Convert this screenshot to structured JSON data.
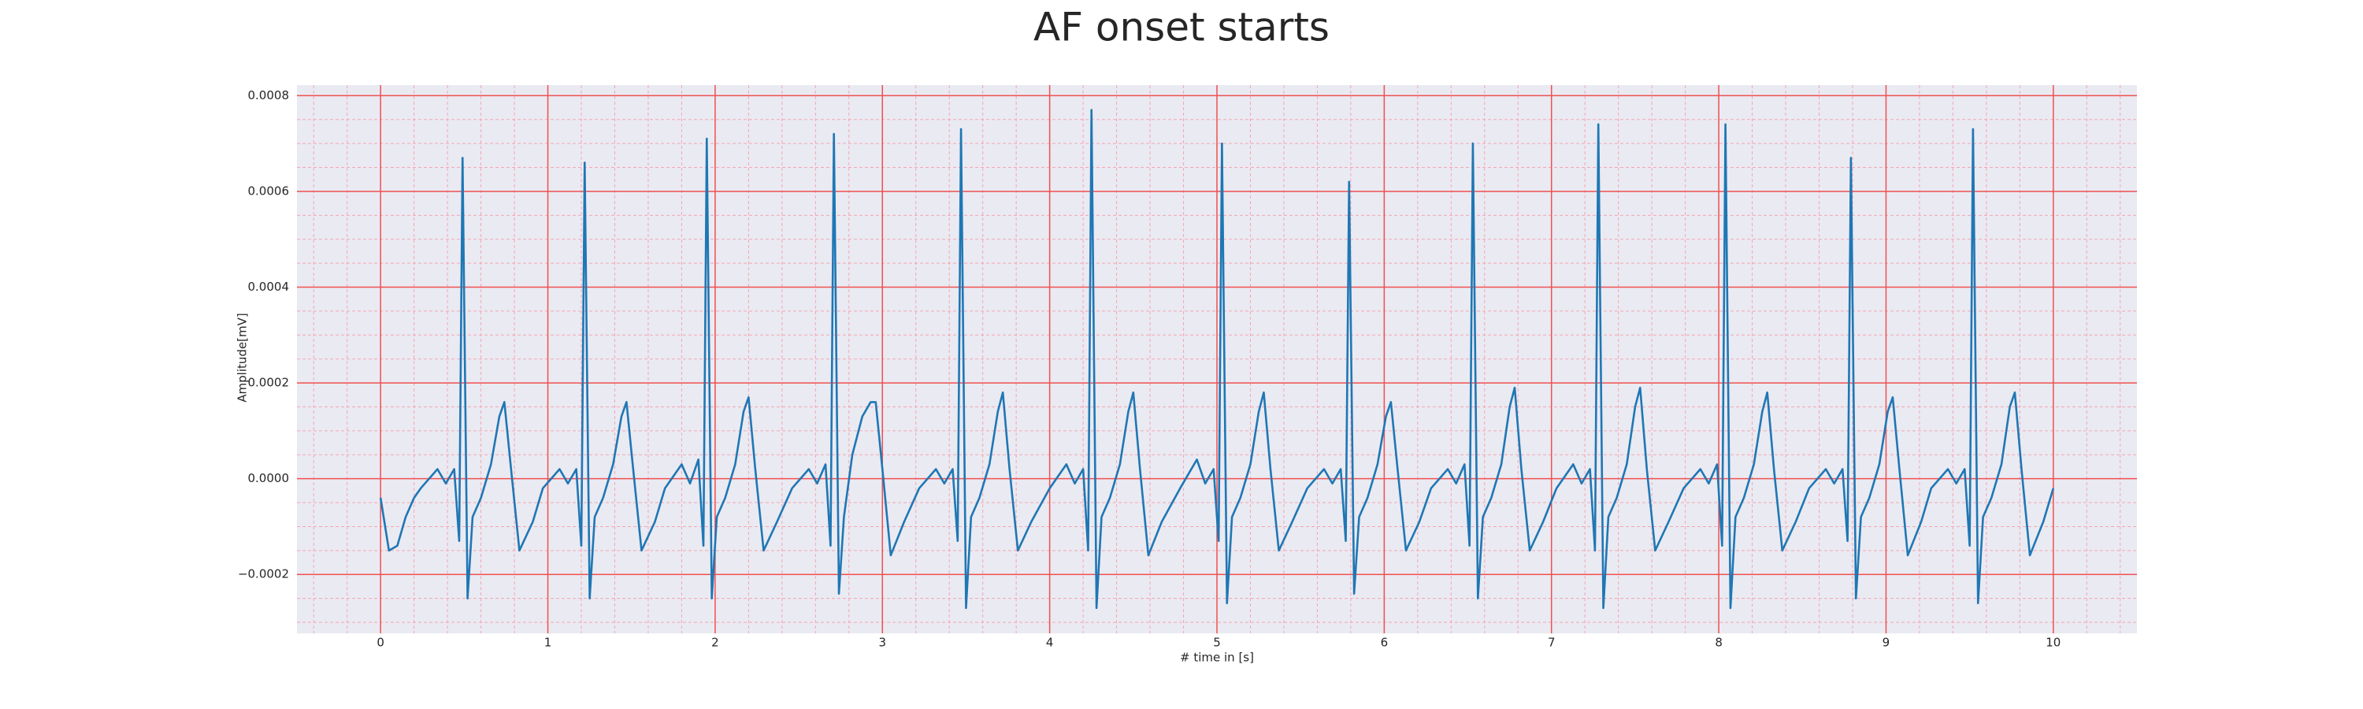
{
  "chart_data": {
    "type": "line",
    "title": "AF onset starts",
    "xlabel": "# time in [s]",
    "ylabel": "Amplitude[mV]",
    "color": "#1f77b4",
    "grid": true,
    "minor_grid": true,
    "xlim": [
      -0.5,
      10.5
    ],
    "ylim": [
      -0.000323,
      0.000822
    ],
    "xticks": [
      0,
      1,
      2,
      3,
      4,
      5,
      6,
      7,
      8,
      9,
      10
    ],
    "yticks": [
      {
        "value": -0.0002,
        "label": "−0.0002"
      },
      {
        "value": 0,
        "label": "0.0000"
      },
      0.0002,
      0.0004,
      0.0006,
      0.0008
    ],
    "xminorticks": [
      -0.4,
      -0.2,
      0.2,
      0.4,
      0.6,
      0.8,
      1.2,
      1.4,
      1.6,
      1.8,
      2.2,
      2.4,
      2.6,
      2.8,
      3.2,
      3.4,
      3.6,
      3.8,
      4.2,
      4.4,
      4.6,
      4.8,
      5.2,
      5.4,
      5.6,
      5.8,
      6.2,
      6.4,
      6.6,
      6.8,
      7.2,
      7.4,
      7.6,
      7.8,
      8.2,
      8.4,
      8.6,
      8.8,
      9.2,
      9.4,
      9.6,
      9.8,
      10.2,
      10.4
    ],
    "yminorticks": [
      -0.0003,
      -0.00025,
      -0.00015,
      -0.0001,
      -5e-05,
      5e-05,
      0.0001,
      0.00015,
      0.00025,
      0.0003,
      0.00035,
      0.00045,
      0.0005,
      0.00055,
      0.00065,
      0.0007,
      0.00075
    ],
    "x": [
      0,
      0.05,
      0.1,
      0.15,
      0.2,
      0.24,
      0.34,
      0.39,
      0.44,
      0.47,
      0.49,
      0.52,
      0.55,
      0.6,
      0.66,
      0.71,
      0.74,
      0.78,
      0.83,
      0.91,
      0.97,
      1.07,
      1.12,
      1.17,
      1.2,
      1.22,
      1.25,
      1.28,
      1.33,
      1.39,
      1.44,
      1.47,
      1.51,
      1.56,
      1.64,
      1.7,
      1.8,
      1.85,
      1.9,
      1.93,
      1.95,
      1.98,
      2.01,
      2.06,
      2.12,
      2.17,
      2.2,
      2.24,
      2.29,
      2.37,
      2.46,
      2.56,
      2.61,
      2.66,
      2.69,
      2.71,
      2.74,
      2.77,
      2.82,
      2.88,
      2.93,
      2.96,
      3.0,
      3.05,
      3.13,
      3.22,
      3.32,
      3.37,
      3.42,
      3.45,
      3.47,
      3.5,
      3.53,
      3.58,
      3.64,
      3.69,
      3.72,
      3.76,
      3.81,
      3.89,
      4.0,
      4.1,
      4.15,
      4.2,
      4.23,
      4.25,
      4.28,
      4.31,
      4.36,
      4.42,
      4.47,
      4.5,
      4.54,
      4.59,
      4.67,
      4.78,
      4.88,
      4.93,
      4.98,
      5.01,
      5.03,
      5.06,
      5.09,
      5.14,
      5.2,
      5.25,
      5.28,
      5.32,
      5.37,
      5.45,
      5.54,
      5.64,
      5.69,
      5.74,
      5.77,
      5.79,
      5.82,
      5.85,
      5.9,
      5.96,
      6.01,
      6.04,
      6.08,
      6.13,
      6.21,
      6.28,
      6.38,
      6.43,
      6.48,
      6.51,
      6.53,
      6.56,
      6.59,
      6.64,
      6.7,
      6.75,
      6.78,
      6.82,
      6.87,
      6.95,
      7.03,
      7.13,
      7.18,
      7.23,
      7.26,
      7.28,
      7.31,
      7.34,
      7.39,
      7.45,
      7.5,
      7.53,
      7.57,
      7.62,
      7.7,
      7.79,
      7.89,
      7.94,
      7.99,
      8.02,
      8.04,
      8.07,
      8.1,
      8.15,
      8.21,
      8.26,
      8.29,
      8.33,
      8.38,
      8.46,
      8.54,
      8.64,
      8.69,
      8.74,
      8.77,
      8.79,
      8.82,
      8.85,
      8.9,
      8.96,
      9.01,
      9.04,
      9.08,
      9.13,
      9.21,
      9.27,
      9.37,
      9.42,
      9.47,
      9.5,
      9.52,
      9.55,
      9.58,
      9.63,
      9.69,
      9.74,
      9.77,
      9.81,
      9.86,
      9.94,
      10.0
    ],
    "values": [
      -4e-05,
      -0.00015,
      -0.00014,
      -8e-05,
      -4e-05,
      -2e-05,
      2e-05,
      -1e-05,
      2e-05,
      -0.00013,
      0.00067,
      -0.00025,
      -8e-05,
      -4e-05,
      3e-05,
      0.00013,
      0.00016,
      2e-05,
      -0.00015,
      -9e-05,
      -2e-05,
      2e-05,
      -1e-05,
      2e-05,
      -0.00014,
      0.00066,
      -0.00025,
      -8e-05,
      -4e-05,
      3e-05,
      0.00013,
      0.00016,
      2e-05,
      -0.00015,
      -9e-05,
      -2e-05,
      3e-05,
      -1e-05,
      4e-05,
      -0.00014,
      0.00071,
      -0.00025,
      -8e-05,
      -4e-05,
      3e-05,
      0.00014,
      0.00017,
      2e-05,
      -0.00015,
      -9e-05,
      -2e-05,
      2e-05,
      -1e-05,
      3e-05,
      -0.00014,
      0.00072,
      -0.00024,
      -8e-05,
      5e-05,
      0.00013,
      0.00016,
      0.00016,
      2e-05,
      -0.00016,
      -9e-05,
      -2e-05,
      2e-05,
      -1e-05,
      2e-05,
      -0.00013,
      0.00073,
      -0.00027,
      -8e-05,
      -4e-05,
      3e-05,
      0.00014,
      0.00018,
      2e-05,
      -0.00015,
      -9e-05,
      -2e-05,
      3e-05,
      -1e-05,
      2e-05,
      -0.00015,
      0.00077,
      -0.00027,
      -8e-05,
      -4e-05,
      3e-05,
      0.00014,
      0.00018,
      2e-05,
      -0.00016,
      -9e-05,
      -2e-05,
      4e-05,
      -1e-05,
      2e-05,
      -0.00013,
      0.0007,
      -0.00026,
      -8e-05,
      -4e-05,
      3e-05,
      0.00014,
      0.00018,
      2e-05,
      -0.00015,
      -9e-05,
      -2e-05,
      2e-05,
      -1e-05,
      2e-05,
      -0.00013,
      0.00062,
      -0.00024,
      -8e-05,
      -4e-05,
      3e-05,
      0.00013,
      0.00016,
      2e-05,
      -0.00015,
      -9e-05,
      -2e-05,
      2e-05,
      -1e-05,
      3e-05,
      -0.00014,
      0.0007,
      -0.00025,
      -8e-05,
      -4e-05,
      3e-05,
      0.00015,
      0.00019,
      2e-05,
      -0.00015,
      -9e-05,
      -2e-05,
      3e-05,
      -1e-05,
      2e-05,
      -0.00015,
      0.00074,
      -0.00027,
      -8e-05,
      -4e-05,
      3e-05,
      0.00015,
      0.00019,
      2e-05,
      -0.00015,
      -9e-05,
      -2e-05,
      2e-05,
      -1e-05,
      3e-05,
      -0.00014,
      0.00074,
      -0.00027,
      -8e-05,
      -4e-05,
      3e-05,
      0.00014,
      0.00018,
      2e-05,
      -0.00015,
      -9e-05,
      -2e-05,
      2e-05,
      -1e-05,
      2e-05,
      -0.00013,
      0.00067,
      -0.00025,
      -8e-05,
      -4e-05,
      3e-05,
      0.00014,
      0.00017,
      2e-05,
      -0.00016,
      -9e-05,
      -2e-05,
      2e-05,
      -1e-05,
      2e-05,
      -0.00014,
      0.00073,
      -0.00026,
      -8e-05,
      -4e-05,
      3e-05,
      0.00015,
      0.00018,
      2e-05,
      -0.00016,
      -9e-05,
      -2e-05
    ]
  }
}
